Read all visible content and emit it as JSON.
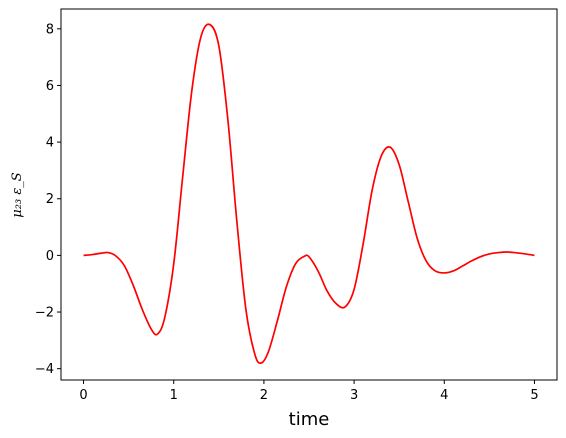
{
  "chart_data": {
    "type": "line",
    "title": "",
    "xlabel": "time",
    "ylabel": "μ₂₃ ε_S",
    "xlim": [
      -0.25,
      5.25
    ],
    "ylim": [
      -4.4,
      8.7
    ],
    "xticks": [
      0,
      1,
      2,
      3,
      4,
      5
    ],
    "yticks": [
      -4,
      -2,
      0,
      2,
      4,
      6,
      8
    ],
    "xtick_labels": [
      "0",
      "1",
      "2",
      "3",
      "4",
      "5"
    ],
    "ytick_labels": [
      "−4",
      "−2",
      "0",
      "2",
      "4",
      "6",
      "8"
    ],
    "grid": false,
    "legend": "none",
    "series": [
      {
        "color": "#ff0000",
        "x": [
          0,
          0.1,
          0.2,
          0.27,
          0.35,
          0.45,
          0.55,
          0.65,
          0.75,
          0.82,
          0.9,
          1.0,
          1.1,
          1.2,
          1.3,
          1.4,
          1.5,
          1.6,
          1.7,
          1.8,
          1.9,
          1.97,
          2.05,
          2.15,
          2.25,
          2.35,
          2.45,
          2.5,
          2.6,
          2.7,
          2.8,
          2.9,
          3.0,
          3.1,
          3.2,
          3.3,
          3.4,
          3.5,
          3.6,
          3.7,
          3.8,
          3.9,
          4.0,
          4.1,
          4.2,
          4.3,
          4.4,
          4.5,
          4.6,
          4.7,
          4.8,
          4.9,
          5.0
        ],
        "y": [
          0,
          0.03,
          0.08,
          0.1,
          0.0,
          -0.35,
          -1.05,
          -1.9,
          -2.6,
          -2.78,
          -2.2,
          -0.3,
          2.8,
          5.8,
          7.7,
          8.15,
          7.4,
          4.8,
          1.2,
          -1.9,
          -3.5,
          -3.8,
          -3.4,
          -2.3,
          -1.1,
          -0.3,
          -0.03,
          -0.05,
          -0.55,
          -1.25,
          -1.7,
          -1.82,
          -1.2,
          0.4,
          2.3,
          3.5,
          3.82,
          3.2,
          1.9,
          0.6,
          -0.2,
          -0.55,
          -0.62,
          -0.55,
          -0.38,
          -0.2,
          -0.05,
          0.05,
          0.1,
          0.12,
          0.09,
          0.05,
          0.0
        ]
      }
    ]
  }
}
